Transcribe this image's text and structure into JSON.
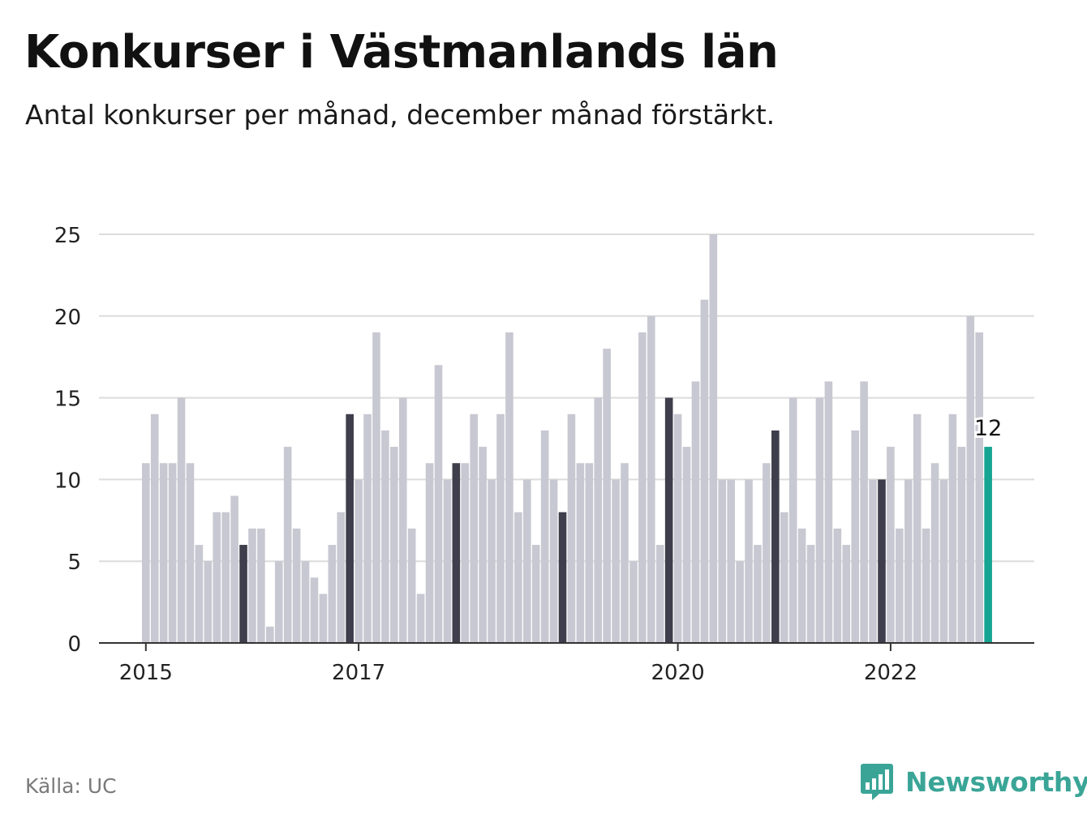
{
  "title": "Konkurser i Västmanlands län",
  "subtitle": "Antal konkurser per månad, december månad förstärkt.",
  "source": "Källa: UC",
  "brand": "Newsworthy",
  "colors": {
    "bar": "#c8c8d2",
    "december": "#3e3e4c",
    "latest": "#16a592",
    "grid": "#dcdcdc",
    "axis": "#333333",
    "brand": "#3aa597"
  },
  "icons": {
    "logo": "bar-chart-speech-bubble-icon"
  },
  "chart_data": {
    "type": "bar",
    "x_start": "2015-01",
    "x_end": "2022-12",
    "highlight": "december",
    "ylim": [
      0,
      25
    ],
    "yticks": [
      0,
      5,
      10,
      15,
      20,
      25
    ],
    "xticks": [
      "2015",
      "2017",
      "2020",
      "2022"
    ],
    "grid": true,
    "latest_label": "12",
    "values": [
      11,
      14,
      11,
      11,
      15,
      11,
      6,
      5,
      8,
      8,
      9,
      6,
      7,
      7,
      1,
      5,
      12,
      7,
      5,
      4,
      3,
      6,
      8,
      14,
      10,
      14,
      19,
      13,
      12,
      15,
      7,
      3,
      11,
      17,
      10,
      11,
      11,
      14,
      12,
      10,
      14,
      19,
      8,
      10,
      6,
      13,
      10,
      8,
      14,
      11,
      11,
      15,
      18,
      10,
      11,
      5,
      19,
      20,
      6,
      15,
      14,
      12,
      16,
      21,
      25,
      10,
      10,
      5,
      10,
      6,
      11,
      13,
      8,
      15,
      7,
      6,
      15,
      16,
      7,
      6,
      13,
      16,
      10,
      10,
      12,
      7,
      10,
      14,
      7,
      11,
      10,
      14,
      12,
      20,
      19,
      12
    ]
  }
}
